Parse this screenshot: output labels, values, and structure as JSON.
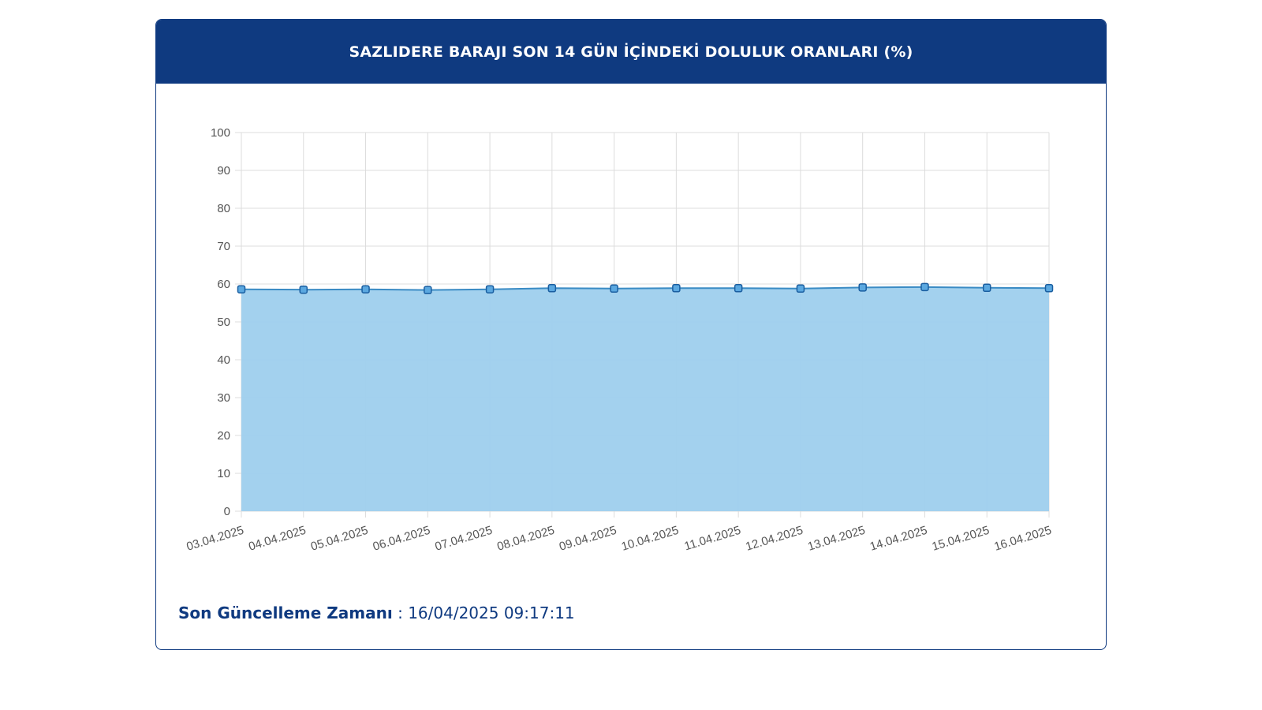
{
  "header": {
    "title": "SAZLIDERE BARAJI SON 14 GÜN İÇİNDEKİ DOLULUK ORANLARI (%)"
  },
  "footer": {
    "label": "Son Güncelleme Zamanı",
    "separator": " : ",
    "value": "16/04/2025 09:17:11"
  },
  "colors": {
    "header_bg": "#0f3a80",
    "area_fill": "#9ecfed",
    "line": "#3a8bc4",
    "point_fill": "#5ba8e0",
    "point_stroke": "#1a5ea0",
    "grid": "#dcdcdc",
    "tick_text": "#555555"
  },
  "chart_data": {
    "type": "area",
    "categories": [
      "03.04.2025",
      "04.04.2025",
      "05.04.2025",
      "06.04.2025",
      "07.04.2025",
      "08.04.2025",
      "09.04.2025",
      "10.04.2025",
      "11.04.2025",
      "12.04.2025",
      "13.04.2025",
      "14.04.2025",
      "15.04.2025",
      "16.04.2025"
    ],
    "values": [
      58.6,
      58.5,
      58.6,
      58.4,
      58.6,
      58.9,
      58.8,
      58.9,
      58.9,
      58.8,
      59.1,
      59.2,
      59.0,
      58.9
    ],
    "ylim": [
      0,
      100
    ],
    "yticks": [
      0,
      10,
      20,
      30,
      40,
      50,
      60,
      70,
      80,
      90,
      100
    ],
    "grid": true,
    "legend": "none",
    "xlabel": "",
    "ylabel": ""
  }
}
